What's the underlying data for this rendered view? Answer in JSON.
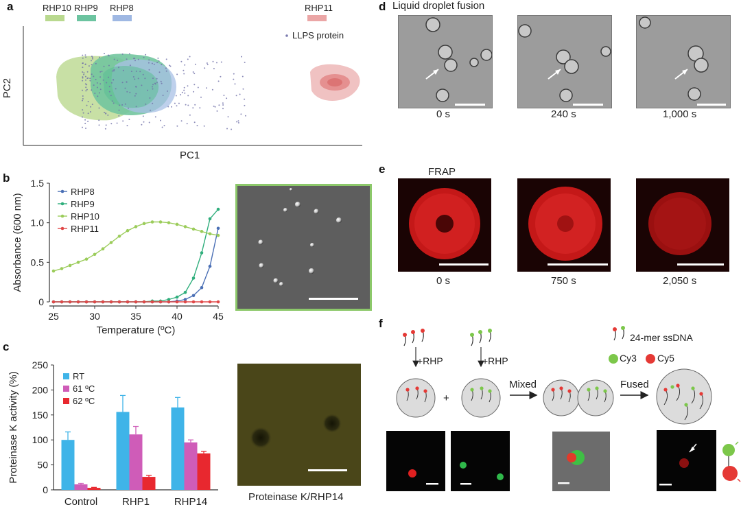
{
  "panels": {
    "a": {
      "label": "a",
      "legend_items": [
        {
          "name": "RHP10",
          "color": "#b9d98f"
        },
        {
          "name": "RHP9",
          "color": "#6cc4a0"
        },
        {
          "name": "RHP8",
          "color": "#9fb8e3"
        },
        {
          "name": "RHP11",
          "color": "#eba6a6"
        }
      ],
      "llps_legend": "LLPS protein",
      "xlabel": "PC1",
      "ylabel": "PC2"
    },
    "b": {
      "label": "b",
      "image_alt": "DIC microscopy droplets"
    },
    "c": {
      "label": "c",
      "image_caption": "Proteinase K/RHP14"
    },
    "d": {
      "label": "d",
      "title": "Liquid droplet fusion",
      "times": [
        "0 s",
        "240 s",
        "1,000 s"
      ]
    },
    "e": {
      "label": "e",
      "title": "FRAP",
      "times": [
        "0 s",
        "750 s",
        "2,050 s"
      ]
    },
    "f": {
      "label": "f",
      "plus_rhp_1": "+RHP",
      "plus_rhp_2": "+RHP",
      "plus_sign": "+",
      "mixed": "Mixed",
      "fused": "Fused",
      "ssdna_legend": "24-mer ssDNA",
      "cy3": "Cy3",
      "cy5": "Cy5"
    }
  },
  "chart_data": [
    {
      "id": "panel-b",
      "type": "line",
      "xlabel": "Temperature (ºC)",
      "ylabel": "Absorbance (600 nm)",
      "xlim": [
        25,
        45
      ],
      "ylim": [
        0,
        1.5
      ],
      "xticks": [
        25,
        30,
        35,
        40,
        45
      ],
      "yticks": [
        0,
        0.5,
        1.0,
        1.5
      ],
      "ytick_labels": [
        "0",
        "0.5",
        "1.0",
        "1.5"
      ],
      "legend_position": "top-left",
      "series": [
        {
          "name": "RHP8",
          "color": "#4a6fb5",
          "x": [
            25,
            26,
            27,
            28,
            29,
            30,
            31,
            32,
            33,
            34,
            35,
            36,
            37,
            38,
            39,
            40,
            41,
            42,
            43,
            44,
            45
          ],
          "y": [
            0,
            0,
            0,
            0,
            0,
            0,
            0,
            0,
            0,
            0,
            0,
            0,
            0,
            0,
            0,
            0.01,
            0.03,
            0.08,
            0.18,
            0.45,
            0.93
          ]
        },
        {
          "name": "RHP9",
          "color": "#2fae7c",
          "x": [
            25,
            26,
            27,
            28,
            29,
            30,
            31,
            32,
            33,
            34,
            35,
            36,
            37,
            38,
            39,
            40,
            41,
            42,
            43,
            44,
            45
          ],
          "y": [
            0,
            0,
            0,
            0,
            0,
            0,
            0,
            0,
            0,
            0,
            0,
            0,
            0.01,
            0.01,
            0.03,
            0.06,
            0.12,
            0.3,
            0.62,
            1.05,
            1.17
          ]
        },
        {
          "name": "RHP10",
          "color": "#9bcc5a",
          "x": [
            25,
            26,
            27,
            28,
            29,
            30,
            31,
            32,
            33,
            34,
            35,
            36,
            37,
            38,
            39,
            40,
            41,
            42,
            43,
            44,
            45
          ],
          "y": [
            0.39,
            0.42,
            0.46,
            0.5,
            0.54,
            0.6,
            0.67,
            0.75,
            0.83,
            0.9,
            0.95,
            0.99,
            1.01,
            1.01,
            1.0,
            0.98,
            0.95,
            0.92,
            0.89,
            0.86,
            0.84
          ]
        },
        {
          "name": "RHP11",
          "color": "#e04848",
          "x": [
            25,
            26,
            27,
            28,
            29,
            30,
            31,
            32,
            33,
            34,
            35,
            36,
            37,
            38,
            39,
            40,
            41,
            42,
            43,
            44,
            45
          ],
          "y": [
            0,
            0,
            0,
            0,
            0,
            0,
            0,
            0,
            0,
            0,
            0,
            0,
            0,
            0,
            0,
            0,
            0,
            0,
            0,
            0,
            0
          ]
        }
      ]
    },
    {
      "id": "panel-c",
      "type": "bar",
      "ylabel": "Proteinase K activity (%)",
      "ylim": [
        0,
        250
      ],
      "yticks": [
        0,
        50,
        100,
        150,
        200,
        250
      ],
      "categories": [
        "Control",
        "RHP1",
        "RHP14"
      ],
      "legend_position": "top-left",
      "series": [
        {
          "name": "RT",
          "color": "#3fb4e8",
          "values": [
            100,
            156,
            165
          ],
          "errors": [
            16,
            33,
            20
          ]
        },
        {
          "name": "61 ºC",
          "color": "#cf5cb8",
          "values": [
            11,
            111,
            95
          ],
          "errors": [
            2,
            16,
            5
          ]
        },
        {
          "name": "62 ºC",
          "color": "#e8282f",
          "values": [
            4,
            26,
            73
          ],
          "errors": [
            1,
            3,
            4
          ]
        }
      ]
    }
  ]
}
